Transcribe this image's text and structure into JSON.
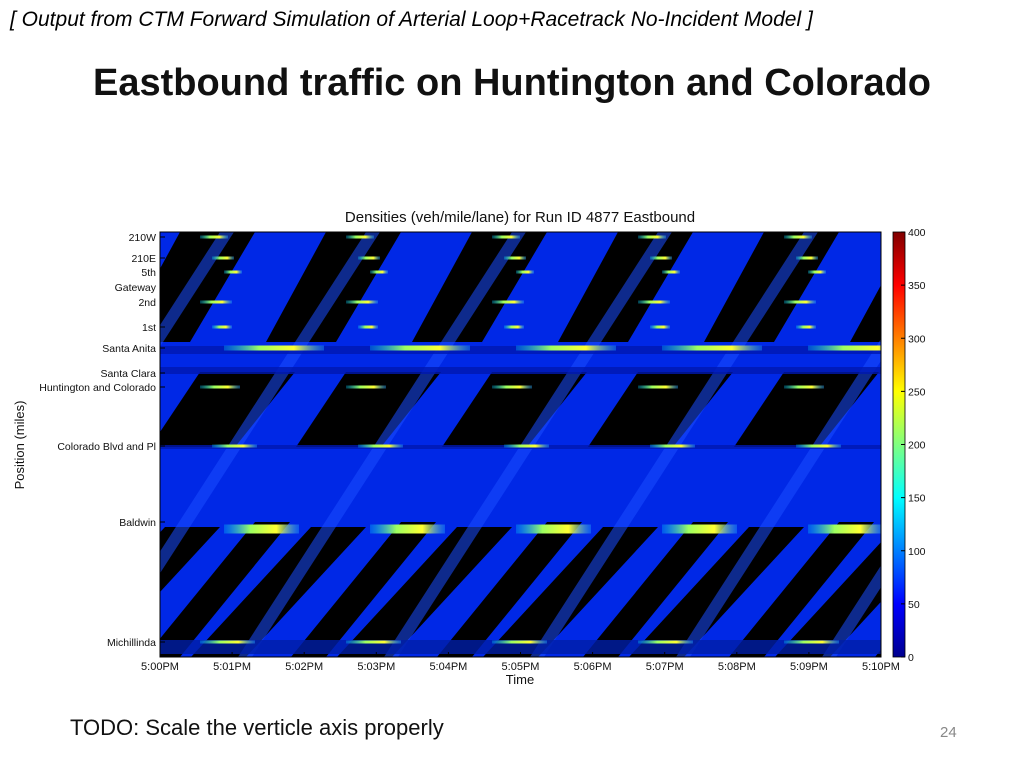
{
  "header": {
    "caption": "[ Output from CTM Forward Simulation of Arterial Loop+Racetrack No-Incident Model ]",
    "title": "Eastbound traffic on Huntington and Colorado"
  },
  "footer": {
    "note": "TODO: Scale the verticle axis properly",
    "page_number": "24"
  },
  "colors": {
    "background_cell": "#0028e6",
    "dark_cell": "#000000",
    "hotspot": "#ffff00"
  },
  "chart_data": {
    "type": "heatmap",
    "title": "Densities (veh/mile/lane) for Run ID 4877 Eastbound",
    "xlabel": "Time",
    "ylabel": "Position (miles)",
    "x_ticks": [
      "5:00PM",
      "5:01PM",
      "5:02PM",
      "5:03PM",
      "5:04PM",
      "5:05PM",
      "5:06PM",
      "5:07PM",
      "5:08PM",
      "5:09PM",
      "5:10PM"
    ],
    "y_ticks": [
      "210W",
      "210E",
      "5th",
      "Gateway",
      "2nd",
      "1st",
      "Santa Anita",
      "Santa Clara",
      "Huntington and Colorado",
      "Colorado Blvd and Pl",
      "Baldwin",
      "Michillinda"
    ],
    "colorbar": {
      "min": 0,
      "max": 400,
      "ticks": [
        0,
        50,
        100,
        150,
        200,
        250,
        300,
        350,
        400
      ],
      "colormap": "jet"
    }
  }
}
